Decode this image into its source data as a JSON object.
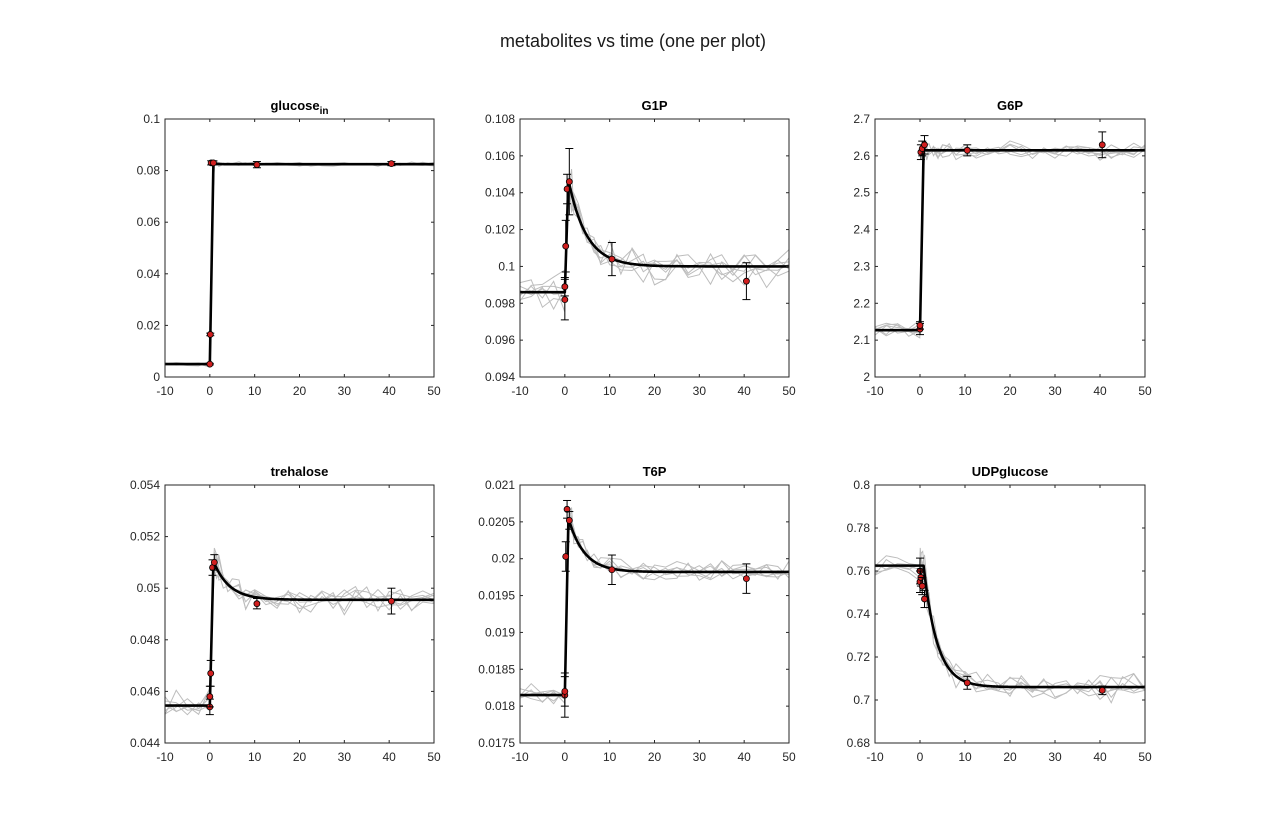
{
  "figure": {
    "title": "metabolites vs time (one per plot)"
  },
  "colors": {
    "model": "#000000",
    "replicates": "#bdbdbd",
    "marker_fill": "#d11f1f",
    "marker_edge": "#000000",
    "axes": "#262626"
  },
  "chart_data": [
    {
      "type": "line",
      "title": "glucose",
      "title_subscript": "in",
      "xlim": [
        -10,
        50
      ],
      "ylim": [
        0,
        0.1
      ],
      "xticks": [
        -10,
        0,
        10,
        20,
        30,
        40,
        50
      ],
      "yticks": [
        0,
        0.02,
        0.04,
        0.06,
        0.08,
        0.1
      ],
      "yticklabels": [
        "0",
        "0.02",
        "0.04",
        "0.06",
        "0.08",
        "0.1"
      ],
      "model": {
        "pre": 0.005,
        "peak": 0.083,
        "final": 0.0825,
        "tau": 0.5
      },
      "replicate_noise": 0.0006,
      "points": [
        {
          "x": 0,
          "y": 0.005,
          "err": 0.0003
        },
        {
          "x": 0.1,
          "y": 0.0165,
          "err": 0.0005
        },
        {
          "x": 0.3,
          "y": 0.083,
          "err": 0.0008
        },
        {
          "x": 0.8,
          "y": 0.083,
          "err": 0.0008
        },
        {
          "x": 10.5,
          "y": 0.0823,
          "err": 0.0012
        },
        {
          "x": 40.5,
          "y": 0.0827,
          "err": 0.0008
        }
      ]
    },
    {
      "type": "line",
      "title": "G1P",
      "xlim": [
        -10,
        50
      ],
      "ylim": [
        0.094,
        0.108
      ],
      "xticks": [
        -10,
        0,
        10,
        20,
        30,
        40,
        50
      ],
      "yticks": [
        0.094,
        0.096,
        0.098,
        0.1,
        0.102,
        0.104,
        0.106,
        0.108
      ],
      "yticklabels": [
        "0.094",
        "0.096",
        "0.098",
        "0.1",
        "0.102",
        "0.104",
        "0.106",
        "0.108"
      ],
      "model": {
        "pre": 0.0986,
        "peak": 0.1047,
        "final": 0.1,
        "tau": 4.0
      },
      "replicate_noise": 0.0007,
      "points": [
        {
          "x": 0,
          "y": 0.0982,
          "err": 0.0011
        },
        {
          "x": 0,
          "y": 0.0989,
          "err": 0.0005
        },
        {
          "x": 0.2,
          "y": 0.1011,
          "err": 0.0014
        },
        {
          "x": 0.5,
          "y": 0.1042,
          "err": 0.0008
        },
        {
          "x": 1,
          "y": 0.1046,
          "err": 0.0018
        },
        {
          "x": 10.5,
          "y": 0.1004,
          "err": 0.0009
        },
        {
          "x": 40.5,
          "y": 0.0992,
          "err": 0.001
        }
      ]
    },
    {
      "type": "line",
      "title": "G6P",
      "xlim": [
        -10,
        50
      ],
      "ylim": [
        2,
        2.7
      ],
      "xticks": [
        -10,
        0,
        10,
        20,
        30,
        40,
        50
      ],
      "yticks": [
        2,
        2.1,
        2.2,
        2.3,
        2.4,
        2.5,
        2.6,
        2.7
      ],
      "yticklabels": [
        "2",
        "2.1",
        "2.2",
        "2.3",
        "2.4",
        "2.5",
        "2.6",
        "2.7"
      ],
      "model": {
        "pre": 2.127,
        "peak": 2.615,
        "final": 2.615,
        "tau": 1.0
      },
      "replicate_noise": 0.018,
      "points": [
        {
          "x": 0,
          "y": 2.13,
          "err": 0.015
        },
        {
          "x": 0,
          "y": 2.14,
          "err": 0.01
        },
        {
          "x": 0.2,
          "y": 2.61,
          "err": 0.02
        },
        {
          "x": 0.5,
          "y": 2.62,
          "err": 0.02
        },
        {
          "x": 1,
          "y": 2.63,
          "err": 0.025
        },
        {
          "x": 10.5,
          "y": 2.615,
          "err": 0.015
        },
        {
          "x": 40.5,
          "y": 2.63,
          "err": 0.035
        }
      ]
    },
    {
      "type": "line",
      "title": "trehalose",
      "xlim": [
        -10,
        50
      ],
      "ylim": [
        0.044,
        0.054
      ],
      "xticks": [
        -10,
        0,
        10,
        20,
        30,
        40,
        50
      ],
      "yticks": [
        0.044,
        0.046,
        0.048,
        0.05,
        0.052,
        0.054
      ],
      "yticklabels": [
        "0.044",
        "0.046",
        "0.048",
        "0.05",
        "0.052",
        "0.054"
      ],
      "model": {
        "pre": 0.04545,
        "peak": 0.05105,
        "final": 0.04955,
        "tau": 3.5
      },
      "replicate_noise": 0.0004,
      "points": [
        {
          "x": 0,
          "y": 0.0454,
          "err": 0.0003
        },
        {
          "x": 0,
          "y": 0.0458,
          "err": 0.0004
        },
        {
          "x": 0.2,
          "y": 0.0467,
          "err": 0.0005
        },
        {
          "x": 0.6,
          "y": 0.0508,
          "err": 0.0003
        },
        {
          "x": 1,
          "y": 0.051,
          "err": 0.0003
        },
        {
          "x": 10.5,
          "y": 0.0494,
          "err": 0.0002
        },
        {
          "x": 40.5,
          "y": 0.0495,
          "err": 0.0005
        }
      ]
    },
    {
      "type": "line",
      "title": "T6P",
      "xlim": [
        -10,
        50
      ],
      "ylim": [
        0.0175,
        0.021
      ],
      "xticks": [
        -10,
        0,
        10,
        20,
        30,
        40,
        50
      ],
      "yticks": [
        0.0175,
        0.018,
        0.0185,
        0.019,
        0.0195,
        0.02,
        0.0205,
        0.021
      ],
      "yticklabels": [
        "0.0175",
        "0.018",
        "0.0185",
        "0.019",
        "0.0195",
        "0.02",
        "0.0205",
        "0.021"
      ],
      "model": {
        "pre": 0.01815,
        "peak": 0.02055,
        "final": 0.01982,
        "tau": 3.5
      },
      "replicate_noise": 0.00012,
      "points": [
        {
          "x": 0,
          "y": 0.01815,
          "err": 0.0003
        },
        {
          "x": 0,
          "y": 0.0182,
          "err": 0.0002
        },
        {
          "x": 0.2,
          "y": 0.02003,
          "err": 0.0002
        },
        {
          "x": 0.5,
          "y": 0.02067,
          "err": 0.00012
        },
        {
          "x": 1,
          "y": 0.02052,
          "err": 0.00012
        },
        {
          "x": 10.5,
          "y": 0.01985,
          "err": 0.0002
        },
        {
          "x": 40.5,
          "y": 0.01973,
          "err": 0.0002
        }
      ]
    },
    {
      "type": "line",
      "title": "UDPglucose",
      "xlim": [
        -10,
        50
      ],
      "ylim": [
        0.68,
        0.8
      ],
      "xticks": [
        -10,
        0,
        10,
        20,
        30,
        40,
        50
      ],
      "yticks": [
        0.68,
        0.7,
        0.72,
        0.74,
        0.76,
        0.78,
        0.8
      ],
      "yticklabels": [
        "0.68",
        "0.7",
        "0.72",
        "0.74",
        "0.76",
        "0.78",
        "0.8"
      ],
      "model": {
        "pre": 0.7625,
        "peak": 0.7625,
        "final": 0.706,
        "tau": 3.0
      },
      "replicate_noise": 0.005,
      "points": [
        {
          "x": 0,
          "y": 0.76,
          "err": 0.006
        },
        {
          "x": 0,
          "y": 0.755,
          "err": 0.005
        },
        {
          "x": 0.2,
          "y": 0.757,
          "err": 0.004
        },
        {
          "x": 0.5,
          "y": 0.753,
          "err": 0.004
        },
        {
          "x": 1,
          "y": 0.747,
          "err": 0.004
        },
        {
          "x": 10.5,
          "y": 0.708,
          "err": 0.003
        },
        {
          "x": 40.5,
          "y": 0.7045,
          "err": 0.002
        }
      ]
    }
  ]
}
